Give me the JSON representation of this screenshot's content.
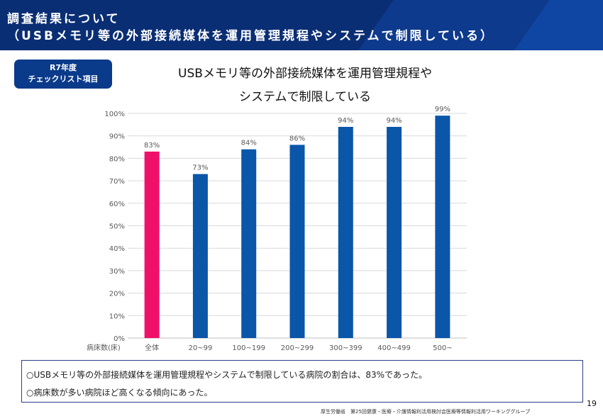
{
  "header": {
    "title_line1": "調査結果について",
    "title_line2": "（USBメモリ等の外部接続媒体を運用管理規程やシステムで制限している）"
  },
  "badge": {
    "line1": "R7年度",
    "line2": "チェックリスト項目"
  },
  "chart_title": {
    "line1": "USBメモリ等の外部接続媒体を運用管理規程や",
    "line2": "システムで制限している"
  },
  "chart_data": {
    "type": "bar",
    "categories": [
      "全体",
      "20~99",
      "100~199",
      "200~299",
      "300~399",
      "400~499",
      "500~"
    ],
    "values": [
      83,
      73,
      84,
      86,
      94,
      94,
      99
    ],
    "data_labels": [
      "83%",
      "73%",
      "84%",
      "86%",
      "94%",
      "94%",
      "99%"
    ],
    "ylim": [
      0,
      100
    ],
    "yticks": [
      "0%",
      "10%",
      "20%",
      "30%",
      "40%",
      "50%",
      "60%",
      "70%",
      "80%",
      "90%",
      "100%"
    ],
    "xlabel": "病床数(床)",
    "grid": true,
    "colors": {
      "highlight": "#f0106a",
      "bar": "#0a56a9",
      "grid": "#d9d9d9",
      "axis": "#bfbfbf"
    },
    "highlight_index": 0
  },
  "notes": [
    "○USBメモリ等の外部接続媒体を運用管理規程やシステムで制限している病院の割合は、83%であった。",
    "○病床数が多い病院ほど高くなる傾向にあった。"
  ],
  "page_number": "19",
  "footer": "厚生労働省　第25回健康・医療・介護情報利活用検討会医療等情報利活用ワーキンググループ"
}
